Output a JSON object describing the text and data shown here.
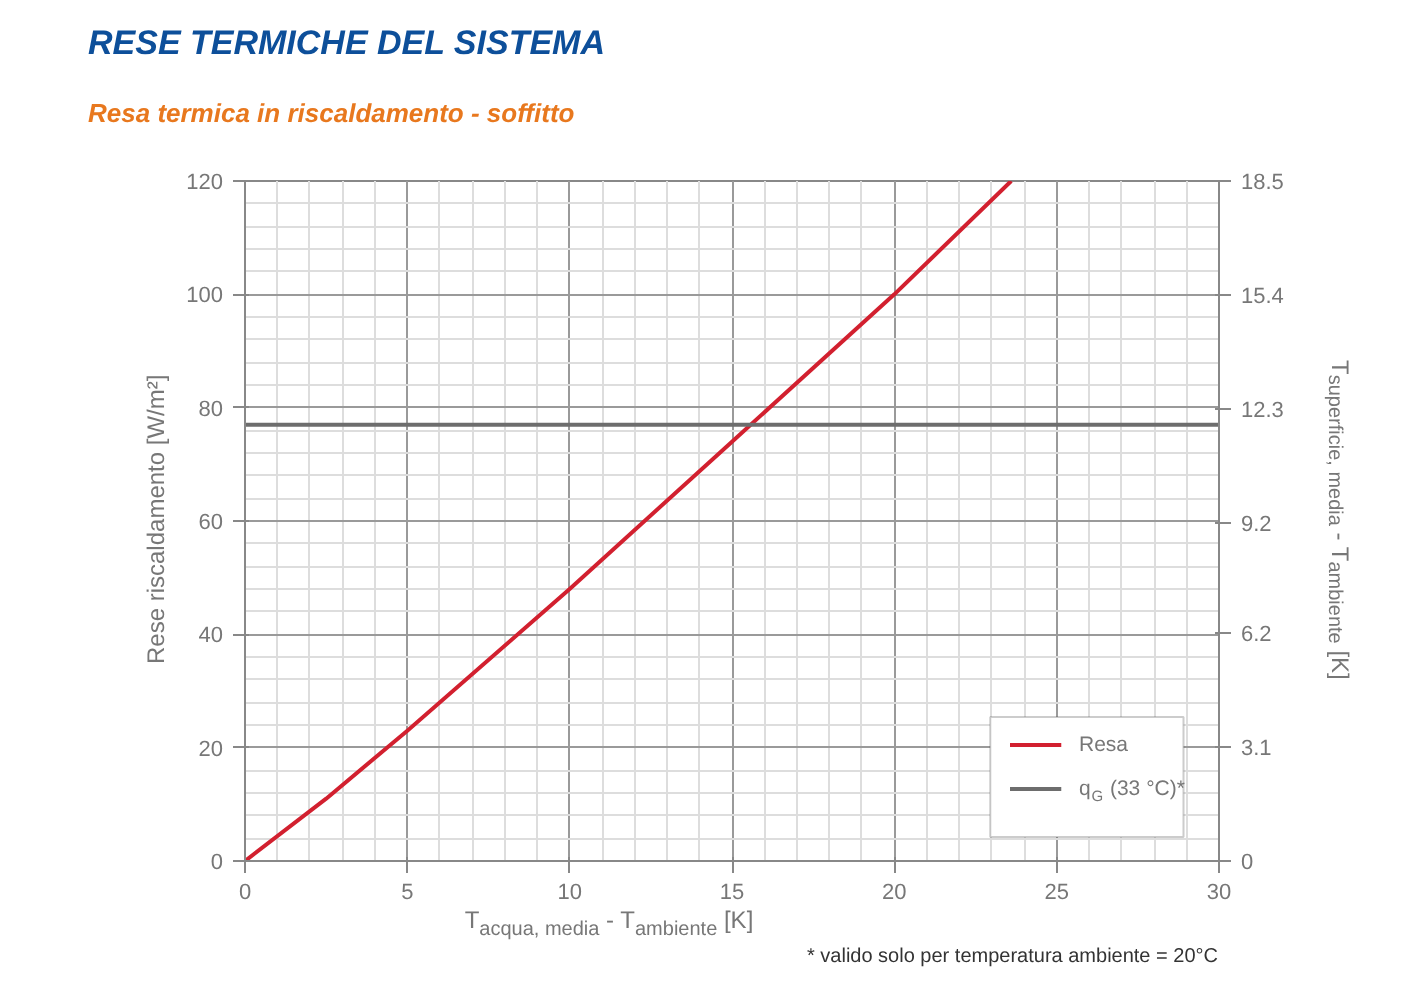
{
  "chart_data": {
    "type": "line",
    "title": "RESE TERMICHE DEL SISTEMA",
    "subtitle": "Resa termica in riscaldamento - soffitto",
    "xlabel": "T$_{acqua, media}$ - T$_{ambiente}$ [K]",
    "ylabel": "Rese riscaldamento [W/m²]",
    "y2label": "T$_{superficie, media}$ - T$_{ambiente}$ [K]",
    "annotations": [
      "* valido solo per temperatura ambiente = 20°C"
    ],
    "series": [
      {
        "name": "Resa",
        "color": "#d2202f",
        "x": [
          0,
          2.5,
          5,
          10,
          15,
          20,
          23.6
        ],
        "values": [
          0,
          11,
          23,
          48,
          74,
          100,
          120
        ]
      },
      {
        "name": "q$_{G}$ (33 °C)*",
        "color": "#6d6d6d",
        "x": [
          0,
          30
        ],
        "values": [
          77,
          77
        ]
      }
    ],
    "xlim": [
      0,
      30
    ],
    "xticks": [
      0,
      5,
      10,
      15,
      20,
      25,
      30
    ],
    "ylim": [
      0,
      120
    ],
    "yticks": [
      0,
      20,
      40,
      60,
      80,
      100,
      120
    ],
    "y2lim": [
      0,
      18.5
    ],
    "y2ticks": [
      0,
      3.1,
      6.2,
      9.2,
      12.3,
      15.4,
      18.5
    ],
    "grid": true,
    "legend": "bottom right",
    "marker": "none",
    "line_style": "solid"
  }
}
